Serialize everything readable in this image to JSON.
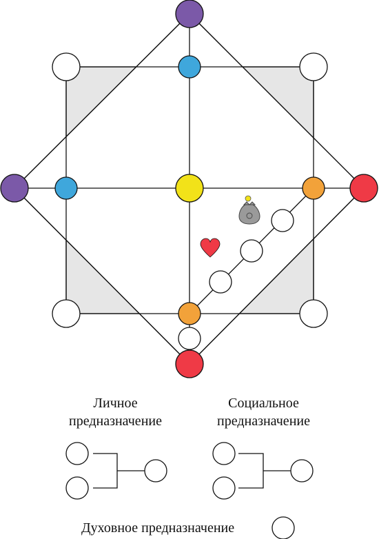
{
  "colors": {
    "purple": "#7b59a8",
    "blue": "#3fa7dc",
    "yellow": "#f2e219",
    "orange": "#f2a23a",
    "red": "#ef3a46",
    "white": "#ffffff",
    "square_fill": "#e6e6e6",
    "stroke": "#111111"
  },
  "icons": {
    "heart": "heart-icon",
    "money_bag": "money-bag-icon"
  },
  "legend": {
    "personal": {
      "line1": "Личное",
      "line2": "предназначение"
    },
    "social": {
      "line1": "Социальное",
      "line2": "предназначение"
    },
    "spiritual": "Духовное предназначение"
  }
}
